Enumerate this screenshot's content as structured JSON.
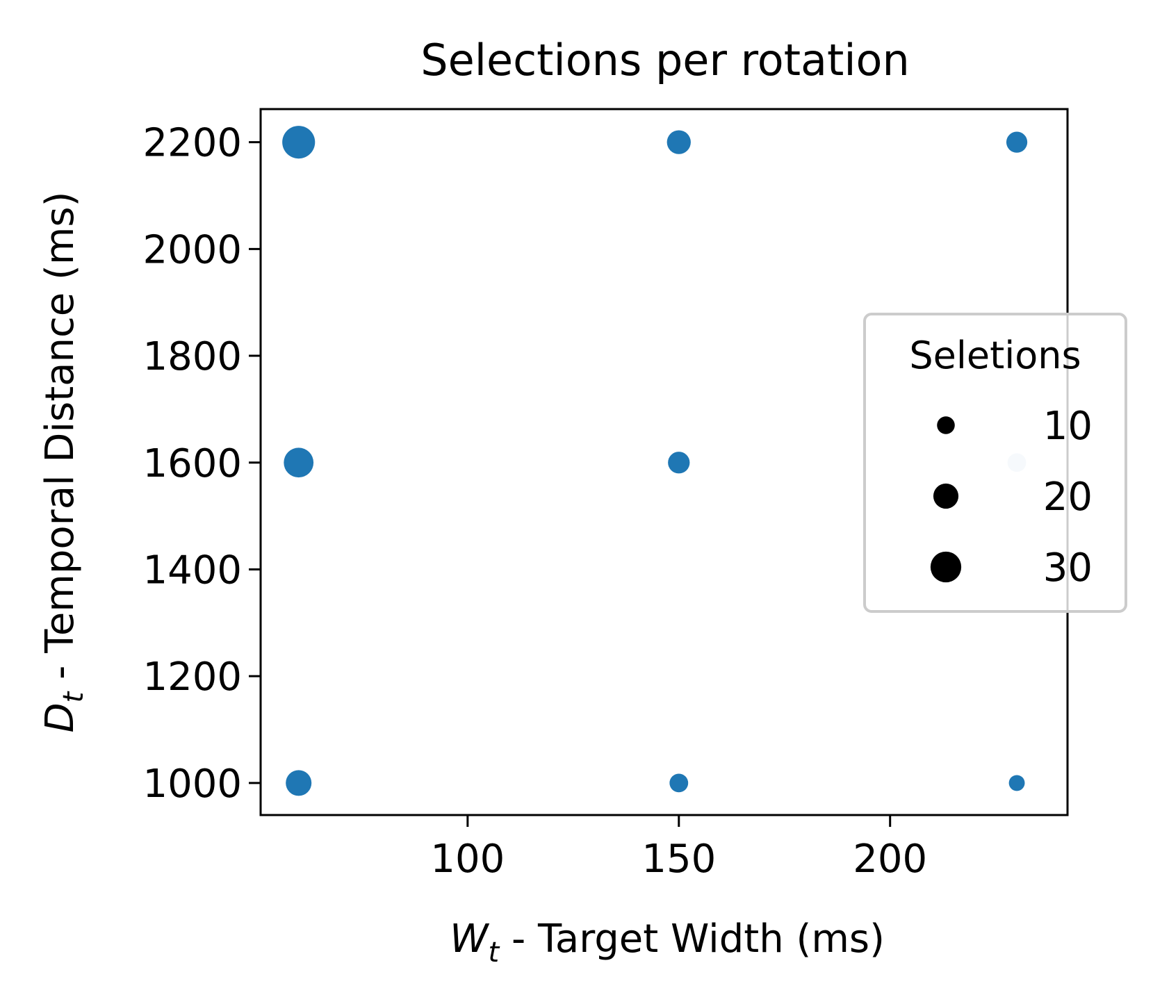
{
  "chart_data": {
    "type": "scatter",
    "title": "Selections per rotation",
    "xlabel": {
      "symbol": "W",
      "subscript": "t",
      "text": " - Target Width (ms)"
    },
    "ylabel": {
      "symbol": "D",
      "subscript": "t",
      "text": " - Temporal Distance (ms)"
    },
    "xlim": [
      51,
      242
    ],
    "ylim": [
      940,
      2262
    ],
    "xticks": [
      100,
      150,
      200
    ],
    "yticks": [
      1000,
      1200,
      1400,
      1600,
      1800,
      2000,
      2200
    ],
    "grid": false,
    "marker_color": "#1f77b4",
    "faded_marker_color": "#d0e2ef",
    "points": [
      {
        "x": 60,
        "y": 2200,
        "selections": 34
      },
      {
        "x": 150,
        "y": 2200,
        "selections": 18
      },
      {
        "x": 230,
        "y": 2200,
        "selections": 14
      },
      {
        "x": 60,
        "y": 1600,
        "selections": 28
      },
      {
        "x": 150,
        "y": 1600,
        "selections": 15
      },
      {
        "x": 230,
        "y": 1600,
        "selections": 11,
        "faded": true
      },
      {
        "x": 60,
        "y": 1000,
        "selections": 21
      },
      {
        "x": 150,
        "y": 1000,
        "selections": 11
      },
      {
        "x": 230,
        "y": 1000,
        "selections": 8
      }
    ],
    "legend": {
      "title": "Seletions",
      "placement": "center-right",
      "entries": [
        {
          "label": "10",
          "value": 10
        },
        {
          "label": "20",
          "value": 20
        },
        {
          "label": "30",
          "value": 30
        }
      ]
    }
  }
}
